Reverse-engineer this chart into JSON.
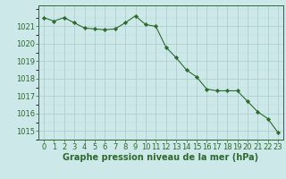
{
  "x": [
    0,
    1,
    2,
    3,
    4,
    5,
    6,
    7,
    8,
    9,
    10,
    11,
    12,
    13,
    14,
    15,
    16,
    17,
    18,
    19,
    20,
    21,
    22,
    23
  ],
  "y": [
    1021.5,
    1021.3,
    1021.5,
    1021.2,
    1020.9,
    1020.85,
    1020.8,
    1020.85,
    1021.2,
    1021.6,
    1021.1,
    1021.0,
    1019.8,
    1019.2,
    1018.5,
    1018.1,
    1017.4,
    1017.3,
    1017.3,
    1017.3,
    1016.7,
    1016.1,
    1015.7,
    1014.9
  ],
  "ylim": [
    1014.5,
    1022.2
  ],
  "yticks": [
    1015,
    1016,
    1017,
    1018,
    1019,
    1020,
    1021
  ],
  "xticks": [
    0,
    1,
    2,
    3,
    4,
    5,
    6,
    7,
    8,
    9,
    10,
    11,
    12,
    13,
    14,
    15,
    16,
    17,
    18,
    19,
    20,
    21,
    22,
    23
  ],
  "line_color": "#2d6a2d",
  "marker_color": "#2d6a2d",
  "bg_color": "#cce8e8",
  "grid_color_major": "#aacccc",
  "grid_color_minor": "#bbdddd",
  "xlabel": "Graphe pression niveau de la mer (hPa)",
  "xlabel_color": "#2d6a2d",
  "tick_color": "#2d6a2d",
  "spine_color": "#2d6a2d",
  "label_fontsize": 7.0,
  "tick_fontsize": 6.0
}
